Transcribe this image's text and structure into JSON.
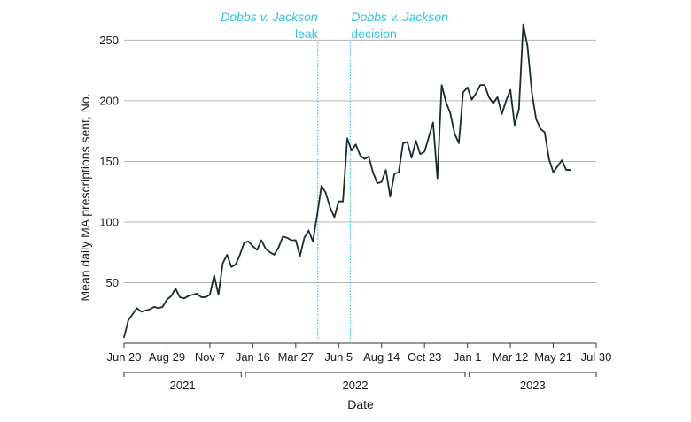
{
  "chart_data": {
    "type": "line",
    "title": "",
    "xlabel": "Date",
    "ylabel": "Mean daily MA prescriptions sent, No.",
    "ylim": [
      0,
      270
    ],
    "yticks": [
      50,
      100,
      150,
      200,
      250
    ],
    "xlim": [
      "2021-06-20",
      "2023-07-30"
    ],
    "xticks": [
      {
        "date": "2021-06-20",
        "label": "Jun 20"
      },
      {
        "date": "2021-08-29",
        "label": "Aug 29"
      },
      {
        "date": "2021-11-07",
        "label": "Nov 7"
      },
      {
        "date": "2022-01-16",
        "label": "Jan 16"
      },
      {
        "date": "2022-03-27",
        "label": "Mar 27"
      },
      {
        "date": "2022-06-05",
        "label": "Jun 5"
      },
      {
        "date": "2022-08-14",
        "label": "Aug 14"
      },
      {
        "date": "2022-10-23",
        "label": "Oct 23"
      },
      {
        "date": "2023-01-01",
        "label": "Jan 1"
      },
      {
        "date": "2023-03-12",
        "label": "Mar 12"
      },
      {
        "date": "2023-05-21",
        "label": "May 21"
      },
      {
        "date": "2023-07-30",
        "label": "Jul 30"
      }
    ],
    "years": [
      {
        "label": "2021",
        "start": "2021-06-20",
        "end": "2021-12-31"
      },
      {
        "label": "2022",
        "start": "2022-01-01",
        "end": "2022-12-31"
      },
      {
        "label": "2023",
        "start": "2023-01-01",
        "end": "2023-07-30"
      }
    ],
    "grid": true,
    "colors": {
      "line": "#1c2b2d",
      "annotation": "#2ec4e6",
      "grid": "#b3b3b3"
    },
    "annotations": [
      {
        "date": "2022-05-02",
        "title": "Dobbs v. Jackson",
        "subtitle": "leak"
      },
      {
        "date": "2022-06-24",
        "title": "Dobbs v. Jackson",
        "subtitle": "decision"
      }
    ],
    "series": [
      {
        "name": "",
        "x": [
          "2021-06-20",
          "2021-06-27",
          "2021-07-04",
          "2021-07-11",
          "2021-07-18",
          "2021-07-25",
          "2021-08-01",
          "2021-08-08",
          "2021-08-15",
          "2021-08-22",
          "2021-08-29",
          "2021-09-05",
          "2021-09-12",
          "2021-09-19",
          "2021-09-26",
          "2021-10-03",
          "2021-10-10",
          "2021-10-17",
          "2021-10-24",
          "2021-10-31",
          "2021-11-07",
          "2021-11-14",
          "2021-11-21",
          "2021-11-28",
          "2021-12-05",
          "2021-12-12",
          "2021-12-19",
          "2021-12-26",
          "2022-01-02",
          "2022-01-09",
          "2022-01-16",
          "2022-01-23",
          "2022-01-30",
          "2022-02-06",
          "2022-02-13",
          "2022-02-20",
          "2022-02-27",
          "2022-03-06",
          "2022-03-13",
          "2022-03-20",
          "2022-03-27",
          "2022-04-03",
          "2022-04-10",
          "2022-04-17",
          "2022-04-24",
          "2022-05-01",
          "2022-05-08",
          "2022-05-15",
          "2022-05-22",
          "2022-05-29",
          "2022-06-05",
          "2022-06-12",
          "2022-06-19",
          "2022-06-26",
          "2022-07-03",
          "2022-07-10",
          "2022-07-17",
          "2022-07-24",
          "2022-07-31",
          "2022-08-07",
          "2022-08-14",
          "2022-08-21",
          "2022-08-28",
          "2022-09-04",
          "2022-09-11",
          "2022-09-18",
          "2022-09-25",
          "2022-10-02",
          "2022-10-09",
          "2022-10-16",
          "2022-10-23",
          "2022-10-30",
          "2022-11-06",
          "2022-11-13",
          "2022-11-20",
          "2022-11-27",
          "2022-12-04",
          "2022-12-11",
          "2022-12-18",
          "2022-12-25",
          "2023-01-01",
          "2023-01-08",
          "2023-01-15",
          "2023-01-22",
          "2023-01-29",
          "2023-02-05",
          "2023-02-12",
          "2023-02-19",
          "2023-02-26",
          "2023-03-05",
          "2023-03-12",
          "2023-03-19",
          "2023-03-26",
          "2023-04-02",
          "2023-04-09",
          "2023-04-16",
          "2023-04-23",
          "2023-04-30",
          "2023-05-07",
          "2023-05-14",
          "2023-05-21",
          "2023-05-28",
          "2023-06-04",
          "2023-06-11",
          "2023-06-18"
        ],
        "values": [
          5,
          19,
          24,
          29,
          26,
          27,
          28,
          30,
          29,
          30,
          36,
          39,
          45,
          38,
          37,
          39,
          40,
          41,
          38,
          38,
          40,
          56,
          40,
          66,
          73,
          63,
          65,
          73,
          83,
          84,
          80,
          77,
          85,
          78,
          75,
          73,
          79,
          88,
          87,
          85,
          85,
          72,
          87,
          93,
          84,
          106,
          130,
          124,
          112,
          104,
          117,
          117,
          169,
          159,
          164,
          155,
          152,
          154,
          141,
          132,
          133,
          143,
          121,
          140,
          141,
          165,
          166,
          153,
          167,
          156,
          158,
          170,
          182,
          136,
          213,
          199,
          190,
          173,
          165,
          207,
          211,
          201,
          206,
          213,
          213,
          203,
          198,
          203,
          189,
          200,
          209,
          180,
          193,
          263,
          245,
          207,
          185,
          177,
          174,
          152,
          141,
          146,
          151,
          143,
          143
        ]
      }
    ]
  }
}
